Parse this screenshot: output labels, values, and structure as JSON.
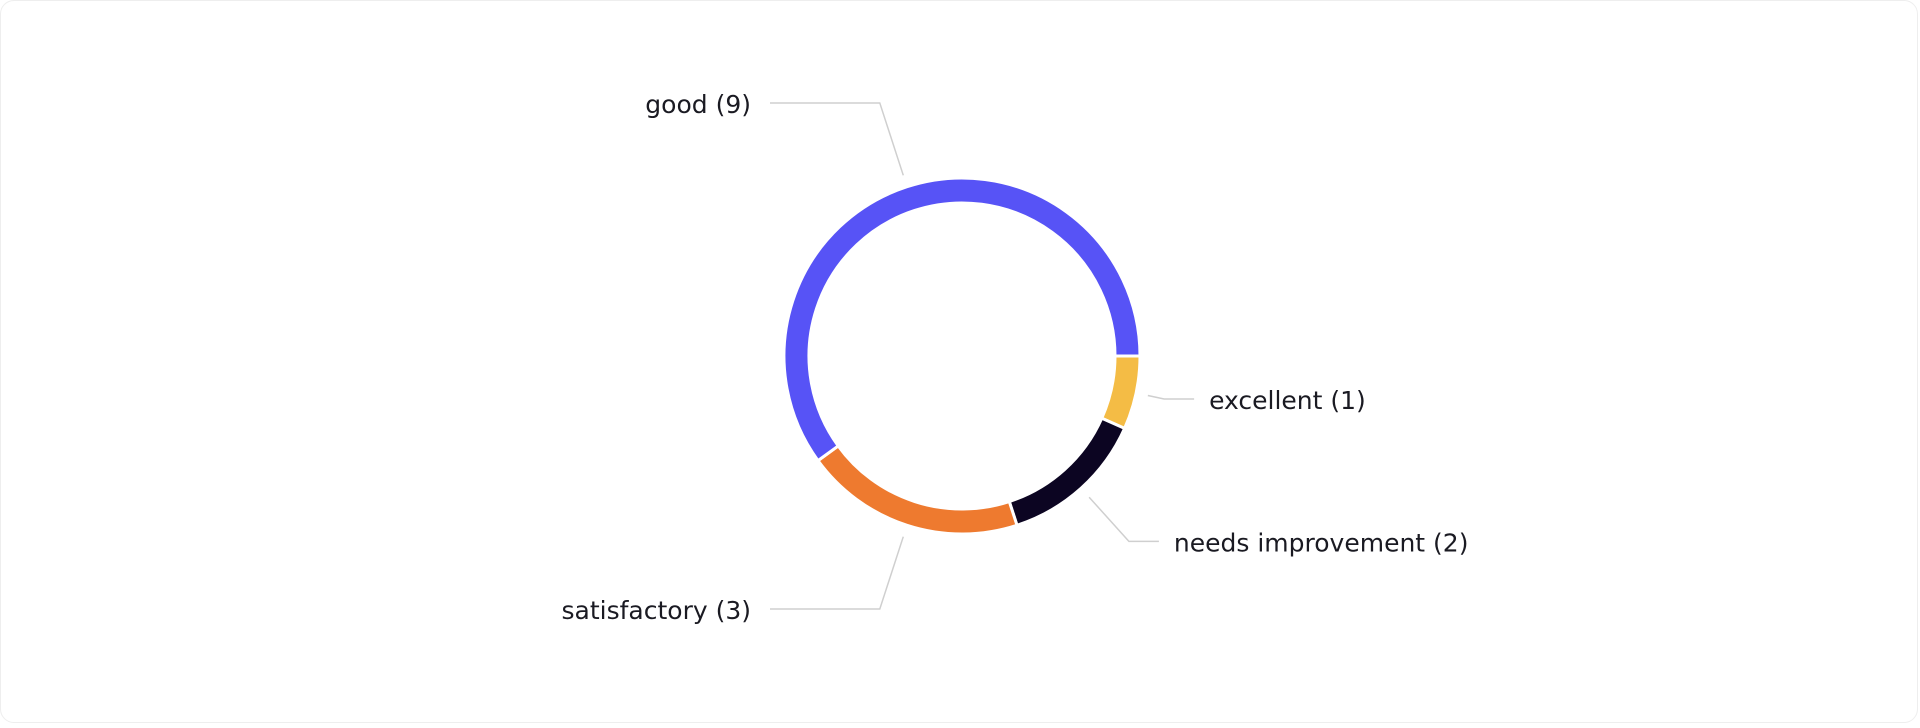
{
  "chart_data": {
    "type": "donut",
    "categories": [
      "excellent (1)",
      "needs improvement (2)",
      "satisfactory (3)",
      "good (9)"
    ],
    "values": [
      1,
      2,
      3,
      9
    ],
    "colors": [
      "#f4bc45",
      "#0c0522",
      "#ee7a2f",
      "#5753f6"
    ]
  }
}
